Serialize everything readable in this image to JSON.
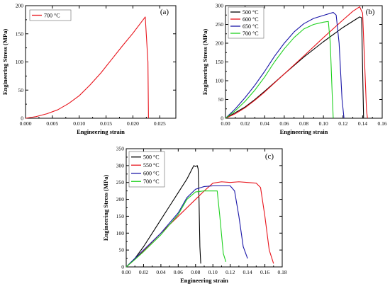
{
  "chart_data": [
    {
      "type": "line",
      "panel_label": "(a)",
      "xlabel": "Engineering strain",
      "ylabel": "Engineering Stress (MPa)",
      "xlim": [
        0,
        0.028
      ],
      "ylim": [
        0,
        200
      ],
      "xticks": [
        0,
        0.005,
        0.01,
        0.015,
        0.02,
        0.025
      ],
      "xtick_labels": [
        "0.000",
        "0.005",
        "0.010",
        "0.015",
        "0.020",
        "0.025"
      ],
      "yticks": [
        0,
        50,
        100,
        150,
        200
      ],
      "ytick_labels": [
        "0",
        "50",
        "100",
        "150",
        "200"
      ],
      "legend_position": "top-left",
      "series": [
        {
          "name": "700 °C",
          "color": "#e8131b",
          "x": [
            0,
            0.002,
            0.004,
            0.006,
            0.008,
            0.01,
            0.012,
            0.014,
            0.016,
            0.018,
            0.02,
            0.0223,
            0.0228,
            0.0229
          ],
          "y": [
            0,
            3,
            8,
            15,
            26,
            40,
            59,
            80,
            104,
            128,
            151,
            180,
            100,
            0
          ]
        }
      ]
    },
    {
      "type": "line",
      "panel_label": "(b)",
      "xlabel": "Engineering strain",
      "ylabel": "Engineering Stress (MPa)",
      "xlim": [
        0,
        0.16
      ],
      "ylim": [
        0,
        300
      ],
      "xticks": [
        0,
        0.02,
        0.04,
        0.06,
        0.08,
        0.1,
        0.12,
        0.14,
        0.16
      ],
      "xtick_labels": [
        "0.00",
        "0.02",
        "0.04",
        "0.06",
        "0.08",
        "0.10",
        "0.12",
        "0.14",
        "0.16"
      ],
      "yticks": [
        0,
        50,
        100,
        150,
        200,
        250,
        300
      ],
      "ytick_labels": [
        "0",
        "50",
        "100",
        "150",
        "200",
        "250",
        "300"
      ],
      "legend_position": "top-left",
      "series": [
        {
          "name": "500 °C",
          "color": "#000000",
          "x": [
            0,
            0.01,
            0.02,
            0.03,
            0.04,
            0.06,
            0.08,
            0.1,
            0.12,
            0.137,
            0.139,
            0.14,
            0.141
          ],
          "y": [
            0,
            15,
            30,
            50,
            72,
            118,
            163,
            204,
            242,
            270,
            268,
            130,
            0
          ]
        },
        {
          "name": "600 °C",
          "color": "#e8131b",
          "x": [
            0,
            0.01,
            0.02,
            0.03,
            0.04,
            0.06,
            0.08,
            0.1,
            0.12,
            0.13,
            0.137,
            0.14,
            0.142,
            0.144,
            0.145
          ],
          "y": [
            0,
            12,
            28,
            48,
            70,
            118,
            166,
            215,
            262,
            285,
            297,
            280,
            150,
            20,
            0
          ]
        },
        {
          "name": "650 °C",
          "color": "#1a16a8",
          "x": [
            0,
            0.01,
            0.02,
            0.03,
            0.04,
            0.05,
            0.06,
            0.07,
            0.08,
            0.09,
            0.1,
            0.11,
            0.113,
            0.116,
            0.119,
            0.121
          ],
          "y": [
            0,
            25,
            55,
            88,
            125,
            165,
            200,
            230,
            252,
            266,
            274,
            282,
            275,
            200,
            50,
            0
          ]
        },
        {
          "name": "700 °C",
          "color": "#1fd11f",
          "x": [
            0,
            0.01,
            0.02,
            0.03,
            0.04,
            0.05,
            0.06,
            0.07,
            0.08,
            0.09,
            0.1,
            0.105,
            0.107,
            0.109,
            0.11
          ],
          "y": [
            0,
            20,
            45,
            75,
            110,
            150,
            185,
            215,
            238,
            250,
            256,
            258,
            200,
            60,
            0
          ]
        }
      ]
    },
    {
      "type": "line",
      "panel_label": "(c)",
      "xlabel": "Engineering strain",
      "ylabel": "Engineering Stress (MPa)",
      "xlim": [
        0,
        0.18
      ],
      "ylim": [
        0,
        350
      ],
      "xticks": [
        0,
        0.02,
        0.04,
        0.06,
        0.08,
        0.1,
        0.12,
        0.14,
        0.16,
        0.18
      ],
      "xtick_labels": [
        "0.00",
        "0.02",
        "0.04",
        "0.06",
        "0.08",
        "0.10",
        "0.12",
        "0.14",
        "0.16",
        "0.18"
      ],
      "yticks": [
        0,
        50,
        100,
        150,
        200,
        250,
        300,
        350
      ],
      "ytick_labels": [
        "0",
        "50",
        "100",
        "150",
        "200",
        "250",
        "300",
        "350"
      ],
      "legend_position": "top-left",
      "series": [
        {
          "name": "500 °C",
          "color": "#000000",
          "x": [
            0,
            0.01,
            0.02,
            0.03,
            0.04,
            0.05,
            0.06,
            0.07,
            0.075,
            0.078,
            0.08,
            0.082,
            0.083,
            0.084,
            0.085,
            0.086
          ],
          "y": [
            0,
            25,
            60,
            100,
            140,
            180,
            220,
            260,
            285,
            300,
            297,
            300,
            290,
            200,
            60,
            10
          ]
        },
        {
          "name": "550 °C",
          "color": "#e8131b",
          "x": [
            0,
            0.01,
            0.02,
            0.04,
            0.06,
            0.08,
            0.09,
            0.1,
            0.11,
            0.12,
            0.13,
            0.14,
            0.15,
            0.155,
            0.16,
            0.165,
            0.17
          ],
          "y": [
            0,
            22,
            48,
            100,
            150,
            200,
            225,
            248,
            252,
            250,
            252,
            250,
            248,
            235,
            150,
            50,
            10
          ]
        },
        {
          "name": "600 °C",
          "color": "#1a16a8",
          "x": [
            0,
            0.01,
            0.02,
            0.04,
            0.06,
            0.07,
            0.08,
            0.09,
            0.1,
            0.11,
            0.12,
            0.125,
            0.13,
            0.135,
            0.14
          ],
          "y": [
            0,
            25,
            50,
            100,
            160,
            205,
            230,
            238,
            240,
            240,
            240,
            225,
            150,
            60,
            25
          ]
        },
        {
          "name": "700 °C",
          "color": "#1fd11f",
          "x": [
            0,
            0.01,
            0.02,
            0.04,
            0.06,
            0.07,
            0.08,
            0.09,
            0.1,
            0.105,
            0.108,
            0.112,
            0.115
          ],
          "y": [
            0,
            22,
            45,
            95,
            155,
            200,
            222,
            225,
            225,
            225,
            150,
            40,
            15
          ]
        }
      ]
    }
  ]
}
